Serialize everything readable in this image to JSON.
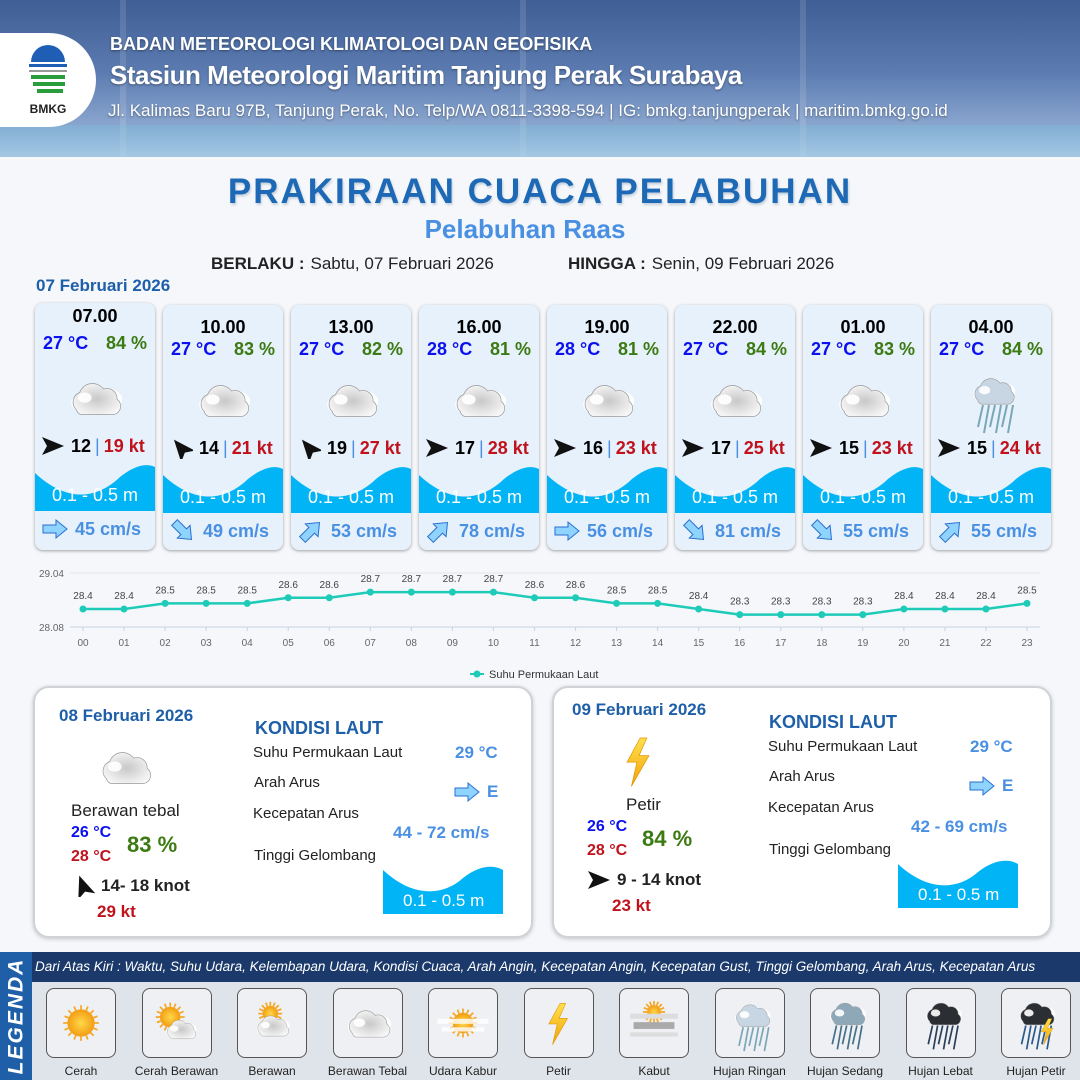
{
  "header": {
    "logo_text": "BMKG",
    "agency": "BADAN METEOROLOGI KLIMATOLOGI DAN GEOFISIKA",
    "station": "Stasiun Meteorologi Maritim Tanjung Perak Surabaya",
    "contact": "Jl. Kalimas Baru 97B, Tanjung Perak, No. Telp/WA 0811-3398-594 | IG: bmkg.tanjungperak | maritim.bmkg.go.id"
  },
  "title": "PRAKIRAAN CUACA PELABUHAN",
  "subtitle": "Pelabuhan Raas",
  "validity": {
    "from_label": "BERLAKU :",
    "from": "Sabtu, 07 Februari 2026",
    "to_label": "HINGGA :",
    "to": "Senin, 09 Februari 2026"
  },
  "day1": {
    "date": "07 Februari 2026",
    "forecasts": [
      {
        "time": "07.00",
        "temp": "27 °C",
        "humidity": "84 %",
        "weather": "berawan-tebal",
        "wind_dir_deg": 0,
        "wind_speed": "12",
        "gust": "19 kt",
        "wave": "0.1 - 0.5 m",
        "current_dir_deg": 0,
        "current_speed": "45 cm/s"
      },
      {
        "time": "10.00",
        "temp": "27 °C",
        "humidity": "83 %",
        "weather": "berawan-tebal",
        "wind_dir_deg": -130,
        "wind_speed": "14",
        "gust": "21 kt",
        "wave": "0.1 - 0.5 m",
        "current_dir_deg": 45,
        "current_speed": "49 cm/s"
      },
      {
        "time": "13.00",
        "temp": "27 °C",
        "humidity": "82 %",
        "weather": "berawan-tebal",
        "wind_dir_deg": -130,
        "wind_speed": "19",
        "gust": "27 kt",
        "wave": "0.1 - 0.5 m",
        "current_dir_deg": -45,
        "current_speed": "53 cm/s"
      },
      {
        "time": "16.00",
        "temp": "28 °C",
        "humidity": "81 %",
        "weather": "berawan-tebal",
        "wind_dir_deg": 0,
        "wind_speed": "17",
        "gust": "28 kt",
        "wave": "0.1 - 0.5 m",
        "current_dir_deg": -45,
        "current_speed": "78 cm/s"
      },
      {
        "time": "19.00",
        "temp": "28 °C",
        "humidity": "81 %",
        "weather": "berawan-tebal",
        "wind_dir_deg": 0,
        "wind_speed": "16",
        "gust": "23 kt",
        "wave": "0.1 - 0.5 m",
        "current_dir_deg": 0,
        "current_speed": "56 cm/s"
      },
      {
        "time": "22.00",
        "temp": "27 °C",
        "humidity": "84 %",
        "weather": "berawan-tebal",
        "wind_dir_deg": 0,
        "wind_speed": "17",
        "gust": "25 kt",
        "wave": "0.1 - 0.5 m",
        "current_dir_deg": 45,
        "current_speed": "81 cm/s"
      },
      {
        "time": "01.00",
        "temp": "27 °C",
        "humidity": "83 %",
        "weather": "berawan-tebal",
        "wind_dir_deg": 0,
        "wind_speed": "15",
        "gust": "23 kt",
        "wave": "0.1 - 0.5 m",
        "current_dir_deg": 45,
        "current_speed": "55 cm/s"
      },
      {
        "time": "04.00",
        "temp": "27 °C",
        "humidity": "84 %",
        "weather": "hujan-ringan",
        "wind_dir_deg": 0,
        "wind_speed": "15",
        "gust": "24 kt",
        "wave": "0.1 - 0.5 m",
        "current_dir_deg": -45,
        "current_speed": "55 cm/s"
      }
    ]
  },
  "chart_data": {
    "type": "line",
    "x": [
      "00",
      "01",
      "02",
      "03",
      "04",
      "05",
      "06",
      "07",
      "08",
      "09",
      "10",
      "11",
      "12",
      "13",
      "14",
      "15",
      "16",
      "17",
      "18",
      "19",
      "20",
      "21",
      "22",
      "23"
    ],
    "series": [
      {
        "name": "Suhu Permukaan Laut",
        "values": [
          28.4,
          28.4,
          28.5,
          28.5,
          28.5,
          28.6,
          28.6,
          28.7,
          28.7,
          28.7,
          28.7,
          28.6,
          28.6,
          28.5,
          28.5,
          28.4,
          28.3,
          28.3,
          28.3,
          28.3,
          28.4,
          28.4,
          28.4,
          28.5
        ],
        "color": "#1ecbb8"
      }
    ],
    "ylim": [
      28.08,
      29.04
    ],
    "yticks": [
      "29.04",
      "28.08"
    ],
    "legend": "bottom",
    "grid": true
  },
  "days": [
    {
      "date": "08 Februari 2026",
      "weather": "berawan-tebal",
      "condition": "Berawan tebal",
      "temp_min": "26 °C",
      "temp_max": "28 °C",
      "humidity": "83 %",
      "wind_dir_deg": -110,
      "wind": "14- 18 knot",
      "gust": "29 kt",
      "sea": {
        "title": "KONDISI LAUT",
        "sst_label": "Suhu Permukaan Laut",
        "sst": "29 °C",
        "dir_label": "Arah Arus",
        "dir": "E",
        "speed_label": "Kecepatan Arus",
        "speed": "44  - 72 cm/s",
        "wave_label": "Tinggi Gelombang",
        "wave": "0.1 - 0.5 m"
      }
    },
    {
      "date": "09 Februari 2026",
      "weather": "petir",
      "condition": "Petir",
      "temp_min": "26 °C",
      "temp_max": "28 °C",
      "humidity": "84 %",
      "wind_dir_deg": 0,
      "wind": "9  - 14 knot",
      "gust": "23 kt",
      "sea": {
        "title": "KONDISI LAUT",
        "sst_label": "Suhu Permukaan Laut",
        "sst": "29 °C",
        "dir_label": "Arah Arus",
        "dir": "E",
        "speed_label": "Kecepatan Arus",
        "speed": "42 - 69 cm/s",
        "wave_label": "Tinggi Gelombang",
        "wave": "0.1 - 0.5 m"
      }
    }
  ],
  "legend": {
    "side_label": "LEGENDA",
    "description": "Dari Atas Kiri : Waktu, Suhu Udara, Kelembapan Udara, Kondisi Cuaca, Arah Angin, Kecepatan Angin, Kecepatan Gust, Tinggi Gelombang, Arah Arus, Kecepatan Arus",
    "items": [
      {
        "label": "Cerah",
        "icon": "cerah"
      },
      {
        "label": "Cerah Berawan",
        "icon": "cerah-berawan"
      },
      {
        "label": "Berawan",
        "icon": "berawan"
      },
      {
        "label": "Berawan Tebal",
        "icon": "berawan-tebal"
      },
      {
        "label": "Udara Kabur",
        "icon": "udara-kabur"
      },
      {
        "label": "Petir",
        "icon": "petir"
      },
      {
        "label": "Kabut",
        "icon": "kabut"
      },
      {
        "label": "Hujan Ringan",
        "icon": "hujan-ringan"
      },
      {
        "label": "Hujan Sedang",
        "icon": "hujan-sedang"
      },
      {
        "label": "Hujan Lebat",
        "icon": "hujan-lebat"
      },
      {
        "label": "Hujan Petir",
        "icon": "hujan-petir"
      }
    ]
  }
}
